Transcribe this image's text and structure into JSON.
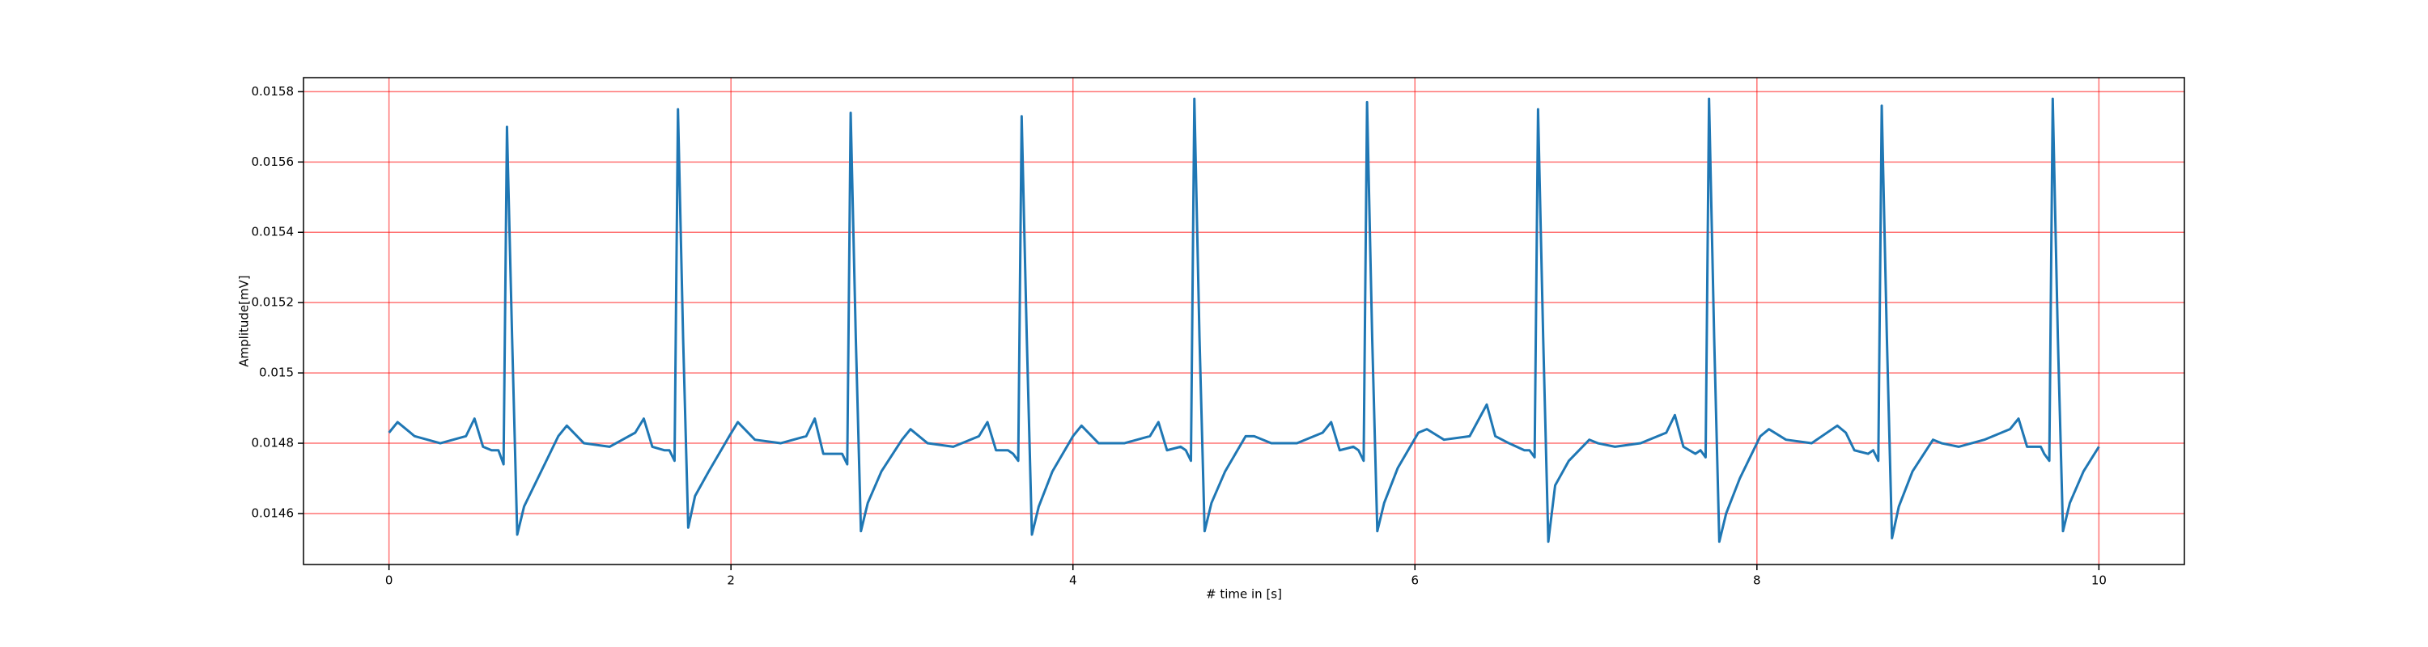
{
  "chart_data": {
    "type": "line",
    "xlabel": "# time in [s]",
    "ylabel": "Amplitude[mV]",
    "color": "#1f77b4",
    "grid": true,
    "grid_color": "#ff0000",
    "xlim": [
      -0.5,
      10.5
    ],
    "ylim": [
      0.014455,
      0.01584
    ],
    "xticks": [
      0,
      2,
      4,
      6,
      8,
      10
    ],
    "yticks": [
      0.0146,
      0.0148,
      0.015,
      0.0152,
      0.0154,
      0.0156,
      0.0158
    ],
    "x": [
      0,
      0.05,
      0.15,
      0.3,
      0.45,
      0.5,
      0.55,
      0.6,
      0.64,
      0.67,
      0.69,
      0.72,
      0.75,
      0.79,
      0.87,
      0.99,
      1.04,
      1.14,
      1.29,
      1.44,
      1.49,
      1.54,
      1.61,
      1.64,
      1.67,
      1.69,
      1.72,
      1.75,
      1.79,
      1.87,
      1.99,
      2.04,
      2.14,
      2.29,
      2.44,
      2.49,
      2.54,
      2.61,
      2.65,
      2.68,
      2.7,
      2.73,
      2.76,
      2.8,
      2.88,
      3.0,
      3.05,
      3.15,
      3.3,
      3.45,
      3.5,
      3.55,
      3.62,
      3.65,
      3.68,
      3.7,
      3.73,
      3.76,
      3.8,
      3.88,
      4.0,
      4.05,
      4.15,
      4.3,
      4.45,
      4.5,
      4.55,
      4.63,
      4.66,
      4.69,
      4.71,
      4.74,
      4.77,
      4.81,
      4.89,
      5.01,
      5.06,
      5.16,
      5.31,
      5.46,
      5.51,
      5.56,
      5.64,
      5.67,
      5.7,
      5.72,
      5.75,
      5.78,
      5.82,
      5.9,
      6.02,
      6.07,
      6.17,
      6.32,
      6.42,
      6.47,
      6.55,
      6.64,
      6.67,
      6.7,
      6.72,
      6.75,
      6.78,
      6.82,
      6.9,
      7.02,
      7.07,
      7.17,
      7.32,
      7.47,
      7.52,
      7.57,
      7.64,
      7.67,
      7.7,
      7.72,
      7.75,
      7.78,
      7.82,
      7.9,
      8.02,
      8.07,
      8.17,
      8.32,
      8.47,
      8.52,
      8.57,
      8.65,
      8.68,
      8.71,
      8.73,
      8.76,
      8.79,
      8.83,
      8.91,
      9.03,
      9.08,
      9.18,
      9.33,
      9.48,
      9.53,
      9.58,
      9.66,
      9.68,
      9.71,
      9.73,
      9.76,
      9.79,
      9.83,
      9.91,
      10.0
    ],
    "values": [
      0.01483,
      0.01486,
      0.01482,
      0.0148,
      0.01482,
      0.01487,
      0.01479,
      0.01478,
      0.01478,
      0.01474,
      0.0157,
      0.0151,
      0.01454,
      0.01462,
      0.0147,
      0.01482,
      0.01485,
      0.0148,
      0.01479,
      0.01483,
      0.01487,
      0.01479,
      0.01478,
      0.01478,
      0.01475,
      0.01575,
      0.0151,
      0.01456,
      0.01465,
      0.01472,
      0.01482,
      0.01486,
      0.01481,
      0.0148,
      0.01482,
      0.01487,
      0.01477,
      0.01477,
      0.01477,
      0.01474,
      0.01574,
      0.0151,
      0.01455,
      0.01463,
      0.01472,
      0.01481,
      0.01484,
      0.0148,
      0.01479,
      0.01482,
      0.01486,
      0.01478,
      0.01478,
      0.01477,
      0.01475,
      0.01573,
      0.0151,
      0.01454,
      0.01462,
      0.01472,
      0.01482,
      0.01485,
      0.0148,
      0.0148,
      0.01482,
      0.01486,
      0.01478,
      0.01479,
      0.01478,
      0.01475,
      0.01578,
      0.0151,
      0.01455,
      0.01463,
      0.01472,
      0.01482,
      0.01482,
      0.0148,
      0.0148,
      0.01483,
      0.01486,
      0.01478,
      0.01479,
      0.01478,
      0.01475,
      0.01577,
      0.0151,
      0.01455,
      0.01463,
      0.01473,
      0.01483,
      0.01484,
      0.01481,
      0.01482,
      0.01491,
      0.01482,
      0.0148,
      0.01478,
      0.01478,
      0.01476,
      0.01575,
      0.0151,
      0.01452,
      0.01468,
      0.01475,
      0.01481,
      0.0148,
      0.01479,
      0.0148,
      0.01483,
      0.01488,
      0.01479,
      0.01477,
      0.01478,
      0.01476,
      0.01578,
      0.0151,
      0.01452,
      0.0146,
      0.0147,
      0.01482,
      0.01484,
      0.01481,
      0.0148,
      0.01485,
      0.01483,
      0.01478,
      0.01477,
      0.01478,
      0.01475,
      0.01576,
      0.0151,
      0.01453,
      0.01462,
      0.01472,
      0.01481,
      0.0148,
      0.01479,
      0.01481,
      0.01484,
      0.01487,
      0.01479,
      0.01479,
      0.01477,
      0.01475,
      0.01578,
      0.0151,
      0.01455,
      0.01463,
      0.01472,
      0.01479
    ]
  }
}
